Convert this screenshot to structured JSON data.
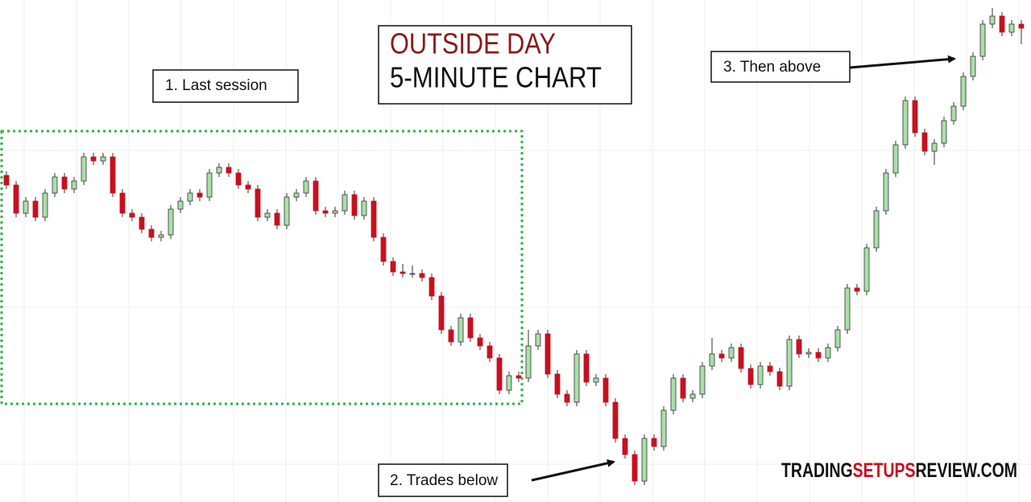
{
  "chart_data": {
    "type": "candlestick",
    "title": "OUTSIDE DAY",
    "subtitle": "5-MINUTE CHART",
    "annotations": [
      "1. Last session",
      "2. Trades below",
      "3. Then above"
    ],
    "watermark": [
      "TRADING",
      "SETUPS",
      "REVIEW.COM"
    ],
    "up_color": "#a9dfa9",
    "down_color": "#c8101e",
    "highlight_color": "#2db34a",
    "ylim": [
      0,
      624
    ],
    "ohlc": [
      [
        406,
        411,
        389,
        394
      ],
      [
        394,
        399,
        354,
        359
      ],
      [
        359,
        379,
        354,
        374
      ],
      [
        374,
        379,
        349,
        354
      ],
      [
        354,
        389,
        349,
        384
      ],
      [
        384,
        409,
        379,
        404
      ],
      [
        404,
        409,
        384,
        389
      ],
      [
        389,
        404,
        384,
        399
      ],
      [
        399,
        434,
        394,
        429
      ],
      [
        429,
        434,
        419,
        424
      ],
      [
        424,
        434,
        419,
        429
      ],
      [
        429,
        434,
        379,
        384
      ],
      [
        384,
        389,
        354,
        359
      ],
      [
        359,
        364,
        349,
        354
      ],
      [
        354,
        359,
        334,
        339
      ],
      [
        339,
        344,
        324,
        329
      ],
      [
        329,
        337,
        324,
        332
      ],
      [
        332,
        369,
        327,
        364
      ],
      [
        364,
        379,
        359,
        374
      ],
      [
        374,
        389,
        369,
        384
      ],
      [
        384,
        389,
        374,
        379
      ],
      [
        379,
        414,
        374,
        409
      ],
      [
        409,
        421,
        404,
        416
      ],
      [
        416,
        421,
        404,
        409
      ],
      [
        409,
        414,
        389,
        394
      ],
      [
        394,
        399,
        384,
        389
      ],
      [
        389,
        394,
        349,
        354
      ],
      [
        354,
        364,
        349,
        359
      ],
      [
        359,
        364,
        339,
        344
      ],
      [
        344,
        384,
        339,
        379
      ],
      [
        379,
        389,
        374,
        384
      ],
      [
        384,
        404,
        379,
        399
      ],
      [
        399,
        404,
        357,
        362
      ],
      [
        362,
        367,
        354,
        359
      ],
      [
        359,
        367,
        354,
        362
      ],
      [
        362,
        387,
        357,
        382
      ],
      [
        382,
        387,
        351,
        356
      ],
      [
        356,
        379,
        351,
        374
      ],
      [
        374,
        379,
        324,
        329
      ],
      [
        329,
        334,
        294,
        299
      ],
      [
        299,
        304,
        281,
        286
      ],
      [
        286,
        296,
        279,
        284
      ],
      [
        284,
        294,
        279,
        284
      ],
      [
        284,
        289,
        274,
        279
      ],
      [
        279,
        284,
        251,
        256
      ],
      [
        256,
        261,
        209,
        214
      ],
      [
        214,
        219,
        194,
        199
      ],
      [
        199,
        234,
        194,
        229
      ],
      [
        229,
        234,
        199,
        204
      ],
      [
        204,
        209,
        189,
        194
      ],
      [
        194,
        199,
        174,
        179
      ],
      [
        179,
        184,
        134,
        139
      ],
      [
        139,
        162,
        134,
        157
      ],
      [
        157,
        162,
        149,
        154
      ],
      [
        154,
        214,
        149,
        194
      ],
      [
        194,
        214,
        189,
        209
      ],
      [
        209,
        214,
        154,
        159
      ],
      [
        159,
        164,
        129,
        134
      ],
      [
        134,
        139,
        119,
        124
      ],
      [
        124,
        189,
        119,
        184
      ],
      [
        184,
        189,
        144,
        149
      ],
      [
        149,
        159,
        144,
        154
      ],
      [
        154,
        159,
        119,
        124
      ],
      [
        124,
        129,
        74,
        79
      ],
      [
        79,
        84,
        54,
        59
      ],
      [
        59,
        64,
        21,
        26
      ],
      [
        26,
        84,
        21,
        79
      ],
      [
        79,
        84,
        64,
        69
      ],
      [
        69,
        119,
        64,
        114
      ],
      [
        114,
        159,
        109,
        154
      ],
      [
        154,
        159,
        124,
        129
      ],
      [
        129,
        139,
        124,
        134
      ],
      [
        134,
        174,
        129,
        169
      ],
      [
        169,
        204,
        164,
        184
      ],
      [
        184,
        189,
        174,
        179
      ],
      [
        179,
        197,
        174,
        192
      ],
      [
        192,
        197,
        161,
        166
      ],
      [
        166,
        171,
        141,
        146
      ],
      [
        146,
        174,
        141,
        169
      ],
      [
        169,
        174,
        157,
        162
      ],
      [
        162,
        167,
        139,
        144
      ],
      [
        144,
        207,
        139,
        202
      ],
      [
        202,
        207,
        179,
        184
      ],
      [
        184,
        191,
        179,
        186
      ],
      [
        186,
        191,
        174,
        179
      ],
      [
        179,
        197,
        174,
        192
      ],
      [
        192,
        219,
        187,
        214
      ],
      [
        214,
        271,
        209,
        266
      ],
      [
        266,
        271,
        257,
        262
      ],
      [
        262,
        321,
        257,
        316
      ],
      [
        316,
        367,
        311,
        362
      ],
      [
        362,
        414,
        357,
        409
      ],
      [
        409,
        449,
        404,
        444
      ],
      [
        444,
        504,
        439,
        499
      ],
      [
        499,
        504,
        454,
        459
      ],
      [
        459,
        464,
        431,
        436
      ],
      [
        436,
        451,
        419,
        446
      ],
      [
        446,
        479,
        441,
        474
      ],
      [
        474,
        497,
        469,
        492
      ],
      [
        492,
        534,
        487,
        529
      ],
      [
        529,
        559,
        524,
        554
      ],
      [
        554,
        599,
        549,
        594
      ],
      [
        594,
        614,
        589,
        604
      ],
      [
        604,
        609,
        579,
        584
      ],
      [
        584,
        599,
        579,
        594
      ],
      [
        594,
        599,
        569,
        589
      ]
    ]
  }
}
